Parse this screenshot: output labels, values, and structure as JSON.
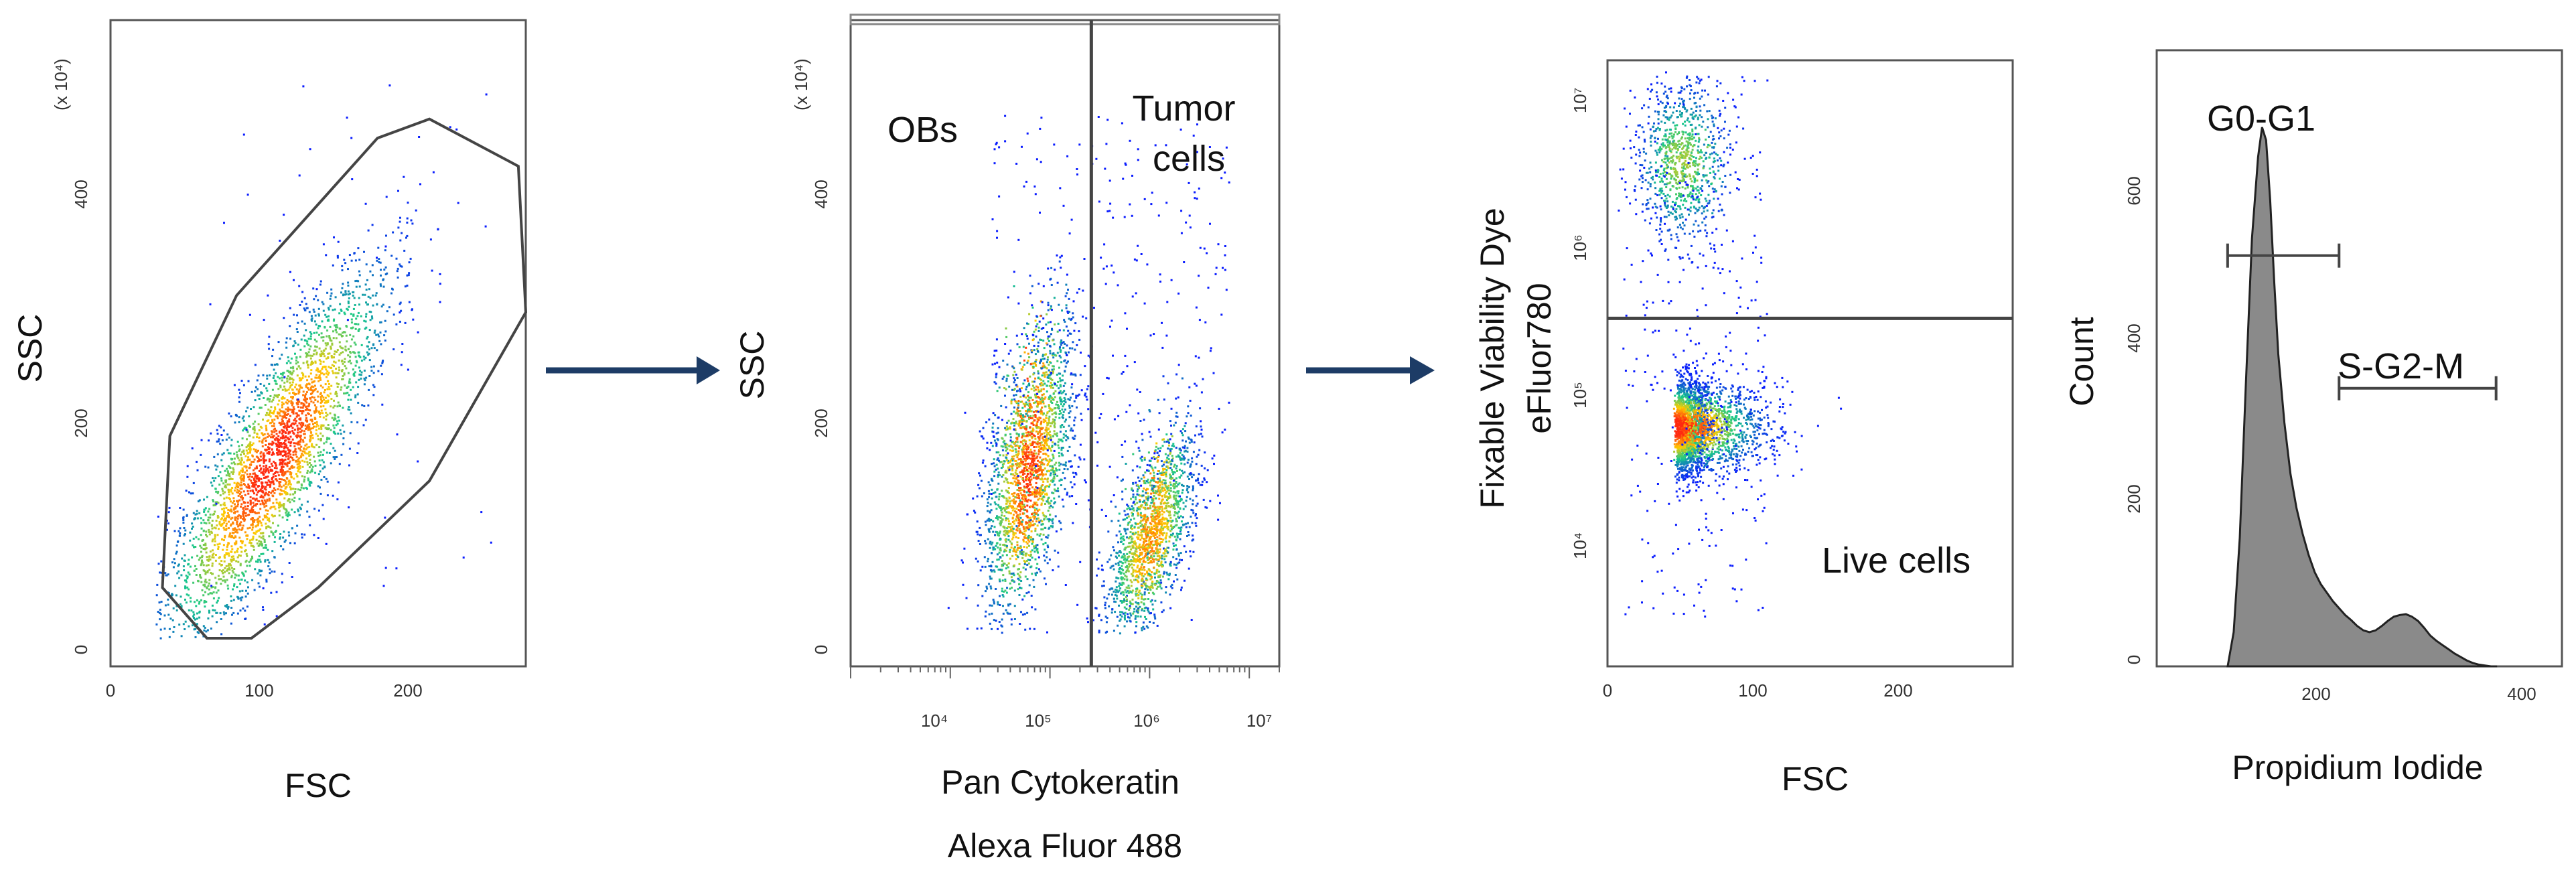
{
  "figure": {
    "colors": {
      "density_low": "#0a1cff",
      "density_mid": "#17c98a",
      "density_high": "#ffcc00",
      "density_peak": "#ff2a10",
      "gate": "#444444",
      "arrow": "#1d3c66",
      "histogram_fill": "#8a8a8a",
      "histogram_edge": "#222222"
    },
    "arrow_icons": [
      "arrow-right-icon",
      "arrow-right-icon"
    ]
  },
  "chart_data": [
    {
      "type": "scatter",
      "xlabel": "FSC",
      "ylabel": "SSC",
      "exponent_label": "(x 10⁴)",
      "xlim": [
        0,
        280
      ],
      "ylim": [
        -25,
        550
      ],
      "xticks": [
        0,
        100,
        200
      ],
      "yticks": [
        0,
        200,
        400
      ],
      "density_center": [
        110,
        160
      ],
      "gate_type": "polygon",
      "gate_vertices": [
        [
          35,
          45
        ],
        [
          40,
          180
        ],
        [
          85,
          305
        ],
        [
          180,
          445
        ],
        [
          215,
          462
        ],
        [
          275,
          420
        ],
        [
          280,
          290
        ],
        [
          215,
          140
        ],
        [
          140,
          45
        ],
        [
          95,
          0
        ],
        [
          65,
          0
        ]
      ]
    },
    {
      "type": "scatter",
      "xlabel": "Pan Cytokeratin\nAlexa Fluor 488",
      "ylabel": "SSC",
      "exponent_label": "(x 10⁴)",
      "xscale": "log",
      "xlim": [
        1000,
        20000000
      ],
      "ylim": [
        -25,
        550
      ],
      "xticks": [
        "10⁴",
        "10⁵",
        "10⁶",
        "10⁷"
      ],
      "yticks": [
        0,
        200,
        400
      ],
      "gate_type": "vertical_split",
      "gate_x": 260000,
      "gates": [
        {
          "name": "OBs"
        },
        {
          "name": "Tumor\ncells"
        }
      ],
      "populations": [
        {
          "center_x": 60000,
          "center_y": 120
        },
        {
          "center_x": 1000000,
          "center_y": 70
        }
      ]
    },
    {
      "type": "scatter",
      "xlabel": "FSC",
      "ylabel": "Fixable Viability Dye\neFluor780",
      "xlim": [
        0,
        280
      ],
      "yscale": "log",
      "ylim": [
        1000,
        15000000
      ],
      "xticks": [
        0,
        100,
        200
      ],
      "yticks": [
        "10⁴",
        "10⁵",
        "10⁶",
        "10⁷"
      ],
      "gate_type": "horizontal_split",
      "gate_y": 250000,
      "gates": [
        {
          "name": "Live cells"
        }
      ],
      "populations": [
        {
          "center_x": 45,
          "center_y": 45000
        },
        {
          "center_x": 45,
          "center_y": 3000000
        }
      ]
    },
    {
      "type": "area",
      "xlabel": "Propidium Iodide",
      "ylabel": "Count",
      "xlim": [
        40,
        440
      ],
      "ylim": [
        0,
        720
      ],
      "xticks": [
        200,
        400
      ],
      "yticks": [
        0,
        200,
        400,
        600
      ],
      "x": [
        110,
        116,
        122,
        128,
        134,
        140,
        144,
        148,
        152,
        156,
        160,
        166,
        172,
        178,
        184,
        190,
        196,
        202,
        208,
        214,
        220,
        226,
        232,
        238,
        244,
        250,
        256,
        262,
        268,
        274,
        280,
        286,
        292,
        298,
        304,
        310,
        316,
        322,
        328,
        334,
        340,
        346,
        352,
        358,
        364,
        370,
        376
      ],
      "y": [
        0,
        40,
        150,
        330,
        500,
        595,
        630,
        615,
        545,
        450,
        365,
        285,
        225,
        185,
        155,
        130,
        110,
        96,
        86,
        76,
        68,
        60,
        54,
        47,
        42,
        40,
        42,
        47,
        53,
        58,
        60,
        61,
        58,
        53,
        45,
        36,
        30,
        25,
        20,
        15,
        11,
        7,
        4,
        2,
        1,
        0,
        0
      ],
      "gates": [
        {
          "name": "G0-G1",
          "x_range": [
            110,
            220
          ],
          "level": 480
        },
        {
          "name": "S-G2-M",
          "x_range": [
            220,
            375
          ],
          "level": 325
        }
      ]
    }
  ]
}
